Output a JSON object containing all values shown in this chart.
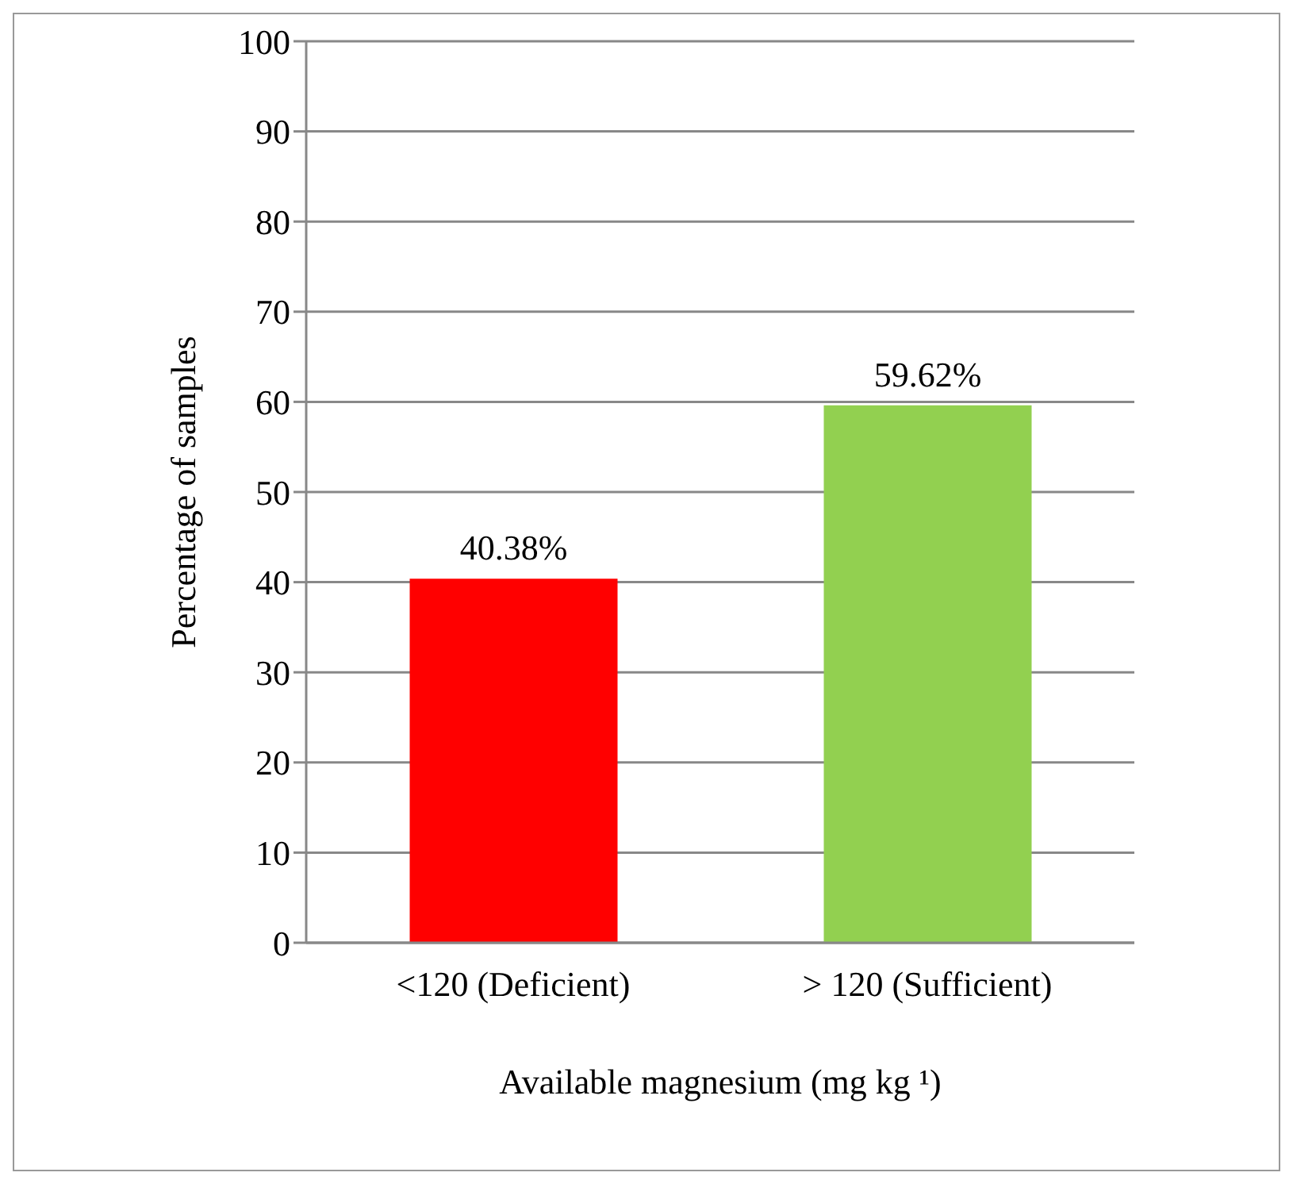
{
  "chart_data": {
    "type": "bar",
    "xlabel": "Available magnesium (mg kg ¹)",
    "ylabel": "Percentage of samples",
    "categories": [
      "<120 (Deficient)",
      "> 120 (Sufficient)"
    ],
    "values": [
      40.38,
      59.62
    ],
    "colors": [
      "#ff0000",
      "#92d050"
    ],
    "value_labels": [
      "40.38%",
      "59.62%"
    ],
    "ylim": [
      0,
      100
    ],
    "yticks": [
      0,
      10,
      20,
      30,
      40,
      50,
      60,
      70,
      80,
      90,
      100
    ],
    "grid": "y"
  }
}
